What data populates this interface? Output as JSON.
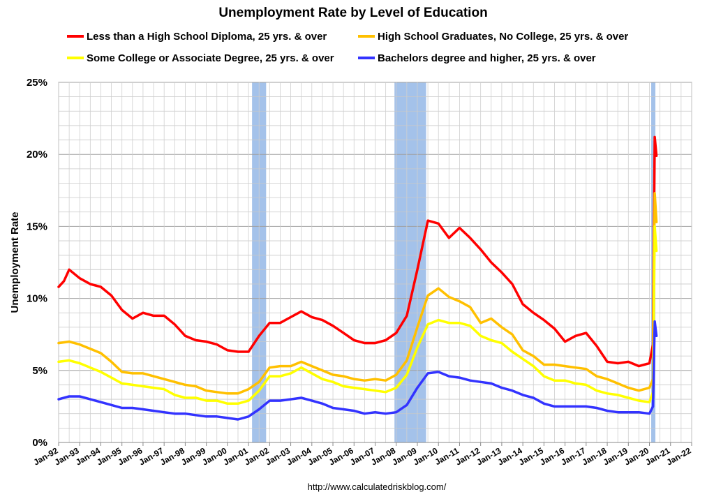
{
  "chart_data": {
    "type": "line",
    "title": "Unemployment Rate by Level of Education",
    "ylabel": "Unemployment Rate",
    "xlabel": "",
    "source": "http://www.calculatedriskblog.com/",
    "ylim": [
      0,
      25
    ],
    "xlim": [
      "1992-01",
      "2022-01"
    ],
    "grid": true,
    "legend_position": "top",
    "y_ticks": [
      {
        "value": 0,
        "label": "0%"
      },
      {
        "value": 5,
        "label": "5%"
      },
      {
        "value": 10,
        "label": "10%"
      },
      {
        "value": 15,
        "label": "15%"
      },
      {
        "value": 20,
        "label": "20%"
      },
      {
        "value": 25,
        "label": "25%"
      }
    ],
    "x_ticks": [
      {
        "date": "1992-01",
        "label": "Jan-92"
      },
      {
        "date": "1993-01",
        "label": "Jan-93"
      },
      {
        "date": "1994-01",
        "label": "Jan-94"
      },
      {
        "date": "1995-01",
        "label": "Jan-95"
      },
      {
        "date": "1996-01",
        "label": "Jan-96"
      },
      {
        "date": "1997-01",
        "label": "Jan-97"
      },
      {
        "date": "1998-01",
        "label": "Jan-98"
      },
      {
        "date": "1999-01",
        "label": "Jan-99"
      },
      {
        "date": "2000-01",
        "label": "Jan-00"
      },
      {
        "date": "2001-01",
        "label": "Jan-01"
      },
      {
        "date": "2002-01",
        "label": "Jan-02"
      },
      {
        "date": "2003-01",
        "label": "Jan-03"
      },
      {
        "date": "2004-01",
        "label": "Jan-04"
      },
      {
        "date": "2005-01",
        "label": "Jan-05"
      },
      {
        "date": "2006-01",
        "label": "Jan-06"
      },
      {
        "date": "2007-01",
        "label": "Jan-07"
      },
      {
        "date": "2008-01",
        "label": "Jan-08"
      },
      {
        "date": "2009-01",
        "label": "Jan-09"
      },
      {
        "date": "2010-01",
        "label": "Jan-10"
      },
      {
        "date": "2011-01",
        "label": "Jan-11"
      },
      {
        "date": "2012-01",
        "label": "Jan-12"
      },
      {
        "date": "2013-01",
        "label": "Jan-13"
      },
      {
        "date": "2014-01",
        "label": "Jan-14"
      },
      {
        "date": "2015-01",
        "label": "Jan-15"
      },
      {
        "date": "2016-01",
        "label": "Jan-16"
      },
      {
        "date": "2017-01",
        "label": "Jan-17"
      },
      {
        "date": "2018-01",
        "label": "Jan-18"
      },
      {
        "date": "2019-01",
        "label": "Jan-19"
      },
      {
        "date": "2020-01",
        "label": "Jan-20"
      },
      {
        "date": "2021-01",
        "label": "Jan-21"
      },
      {
        "date": "2022-01",
        "label": "Jan-22"
      }
    ],
    "recessions": [
      {
        "start": "2001-03",
        "end": "2001-11"
      },
      {
        "start": "2007-12",
        "end": "2009-06"
      },
      {
        "start": "2020-02",
        "end": "2020-04"
      }
    ],
    "recession_color": "#a4c2ea",
    "series": [
      {
        "name": "Less than a High School Diploma, 25 yrs. & over",
        "color": "#ff0000",
        "points": [
          [
            "1992-01",
            10.8
          ],
          [
            "1992-04",
            11.2
          ],
          [
            "1992-07",
            12.0
          ],
          [
            "1993-01",
            11.4
          ],
          [
            "1993-07",
            11.0
          ],
          [
            "1994-01",
            10.8
          ],
          [
            "1994-07",
            10.2
          ],
          [
            "1995-01",
            9.2
          ],
          [
            "1995-07",
            8.6
          ],
          [
            "1996-01",
            9.0
          ],
          [
            "1996-07",
            8.8
          ],
          [
            "1997-01",
            8.8
          ],
          [
            "1997-07",
            8.2
          ],
          [
            "1998-01",
            7.4
          ],
          [
            "1998-07",
            7.1
          ],
          [
            "1999-01",
            7.0
          ],
          [
            "1999-07",
            6.8
          ],
          [
            "2000-01",
            6.4
          ],
          [
            "2000-07",
            6.3
          ],
          [
            "2001-01",
            6.3
          ],
          [
            "2001-07",
            7.4
          ],
          [
            "2002-01",
            8.3
          ],
          [
            "2002-07",
            8.3
          ],
          [
            "2003-01",
            8.7
          ],
          [
            "2003-07",
            9.1
          ],
          [
            "2004-01",
            8.7
          ],
          [
            "2004-07",
            8.5
          ],
          [
            "2005-01",
            8.1
          ],
          [
            "2005-07",
            7.6
          ],
          [
            "2006-01",
            7.1
          ],
          [
            "2006-07",
            6.9
          ],
          [
            "2007-01",
            6.9
          ],
          [
            "2007-07",
            7.1
          ],
          [
            "2008-01",
            7.6
          ],
          [
            "2008-07",
            8.8
          ],
          [
            "2009-01",
            12.0
          ],
          [
            "2009-07",
            15.4
          ],
          [
            "2010-01",
            15.2
          ],
          [
            "2010-07",
            14.2
          ],
          [
            "2011-01",
            14.9
          ],
          [
            "2011-07",
            14.2
          ],
          [
            "2012-01",
            13.4
          ],
          [
            "2012-07",
            12.5
          ],
          [
            "2013-01",
            11.8
          ],
          [
            "2013-07",
            11.0
          ],
          [
            "2014-01",
            9.6
          ],
          [
            "2014-07",
            9.0
          ],
          [
            "2015-01",
            8.5
          ],
          [
            "2015-07",
            7.9
          ],
          [
            "2016-01",
            7.0
          ],
          [
            "2016-07",
            7.4
          ],
          [
            "2017-01",
            7.6
          ],
          [
            "2017-07",
            6.7
          ],
          [
            "2018-01",
            5.6
          ],
          [
            "2018-07",
            5.5
          ],
          [
            "2019-01",
            5.6
          ],
          [
            "2019-07",
            5.3
          ],
          [
            "2020-01",
            5.5
          ],
          [
            "2020-03",
            6.8
          ],
          [
            "2020-04",
            21.2
          ],
          [
            "2020-05",
            19.9
          ]
        ]
      },
      {
        "name": "High School Graduates, No College, 25 yrs. & over",
        "color": "#ffc000",
        "points": [
          [
            "1992-01",
            6.9
          ],
          [
            "1992-07",
            7.0
          ],
          [
            "1993-01",
            6.8
          ],
          [
            "1993-07",
            6.5
          ],
          [
            "1994-01",
            6.2
          ],
          [
            "1994-07",
            5.6
          ],
          [
            "1995-01",
            4.9
          ],
          [
            "1995-07",
            4.8
          ],
          [
            "1996-01",
            4.8
          ],
          [
            "1996-07",
            4.6
          ],
          [
            "1997-01",
            4.4
          ],
          [
            "1997-07",
            4.2
          ],
          [
            "1998-01",
            4.0
          ],
          [
            "1998-07",
            3.9
          ],
          [
            "1999-01",
            3.6
          ],
          [
            "1999-07",
            3.5
          ],
          [
            "2000-01",
            3.4
          ],
          [
            "2000-07",
            3.4
          ],
          [
            "2001-01",
            3.7
          ],
          [
            "2001-07",
            4.2
          ],
          [
            "2002-01",
            5.2
          ],
          [
            "2002-07",
            5.3
          ],
          [
            "2003-01",
            5.3
          ],
          [
            "2003-07",
            5.6
          ],
          [
            "2004-01",
            5.3
          ],
          [
            "2004-07",
            5.0
          ],
          [
            "2005-01",
            4.7
          ],
          [
            "2005-07",
            4.6
          ],
          [
            "2006-01",
            4.4
          ],
          [
            "2006-07",
            4.3
          ],
          [
            "2007-01",
            4.4
          ],
          [
            "2007-07",
            4.3
          ],
          [
            "2008-01",
            4.7
          ],
          [
            "2008-07",
            5.7
          ],
          [
            "2009-01",
            8.0
          ],
          [
            "2009-07",
            10.2
          ],
          [
            "2010-01",
            10.7
          ],
          [
            "2010-07",
            10.1
          ],
          [
            "2011-01",
            9.8
          ],
          [
            "2011-07",
            9.4
          ],
          [
            "2012-01",
            8.3
          ],
          [
            "2012-07",
            8.6
          ],
          [
            "2013-01",
            8.0
          ],
          [
            "2013-07",
            7.5
          ],
          [
            "2014-01",
            6.4
          ],
          [
            "2014-07",
            6.0
          ],
          [
            "2015-01",
            5.4
          ],
          [
            "2015-07",
            5.4
          ],
          [
            "2016-01",
            5.3
          ],
          [
            "2016-07",
            5.2
          ],
          [
            "2017-01",
            5.1
          ],
          [
            "2017-07",
            4.6
          ],
          [
            "2018-01",
            4.4
          ],
          [
            "2018-07",
            4.1
          ],
          [
            "2019-01",
            3.8
          ],
          [
            "2019-07",
            3.6
          ],
          [
            "2020-01",
            3.8
          ],
          [
            "2020-03",
            4.4
          ],
          [
            "2020-04",
            17.3
          ],
          [
            "2020-05",
            15.3
          ]
        ]
      },
      {
        "name": "Some College or Associate Degree, 25 yrs. & over",
        "color": "#ffff00",
        "points": [
          [
            "1992-01",
            5.6
          ],
          [
            "1992-07",
            5.7
          ],
          [
            "1993-01",
            5.5
          ],
          [
            "1993-07",
            5.2
          ],
          [
            "1994-01",
            4.9
          ],
          [
            "1994-07",
            4.5
          ],
          [
            "1995-01",
            4.1
          ],
          [
            "1995-07",
            4.0
          ],
          [
            "1996-01",
            3.9
          ],
          [
            "1996-07",
            3.8
          ],
          [
            "1997-01",
            3.7
          ],
          [
            "1997-07",
            3.3
          ],
          [
            "1998-01",
            3.1
          ],
          [
            "1998-07",
            3.1
          ],
          [
            "1999-01",
            2.9
          ],
          [
            "1999-07",
            2.9
          ],
          [
            "2000-01",
            2.7
          ],
          [
            "2000-07",
            2.7
          ],
          [
            "2001-01",
            2.9
          ],
          [
            "2001-07",
            3.6
          ],
          [
            "2002-01",
            4.6
          ],
          [
            "2002-07",
            4.6
          ],
          [
            "2003-01",
            4.8
          ],
          [
            "2003-07",
            5.2
          ],
          [
            "2004-01",
            4.8
          ],
          [
            "2004-07",
            4.4
          ],
          [
            "2005-01",
            4.2
          ],
          [
            "2005-07",
            3.9
          ],
          [
            "2006-01",
            3.8
          ],
          [
            "2006-07",
            3.7
          ],
          [
            "2007-01",
            3.6
          ],
          [
            "2007-07",
            3.5
          ],
          [
            "2008-01",
            3.8
          ],
          [
            "2008-07",
            4.7
          ],
          [
            "2009-01",
            6.6
          ],
          [
            "2009-07",
            8.2
          ],
          [
            "2010-01",
            8.5
          ],
          [
            "2010-07",
            8.3
          ],
          [
            "2011-01",
            8.3
          ],
          [
            "2011-07",
            8.1
          ],
          [
            "2012-01",
            7.4
          ],
          [
            "2012-07",
            7.1
          ],
          [
            "2013-01",
            6.9
          ],
          [
            "2013-07",
            6.3
          ],
          [
            "2014-01",
            5.8
          ],
          [
            "2014-07",
            5.3
          ],
          [
            "2015-01",
            4.6
          ],
          [
            "2015-07",
            4.3
          ],
          [
            "2016-01",
            4.3
          ],
          [
            "2016-07",
            4.1
          ],
          [
            "2017-01",
            4.0
          ],
          [
            "2017-07",
            3.6
          ],
          [
            "2018-01",
            3.4
          ],
          [
            "2018-07",
            3.3
          ],
          [
            "2019-01",
            3.1
          ],
          [
            "2019-07",
            2.9
          ],
          [
            "2020-01",
            2.8
          ],
          [
            "2020-03",
            3.5
          ],
          [
            "2020-04",
            15.0
          ],
          [
            "2020-05",
            13.3
          ]
        ]
      },
      {
        "name": "Bachelors degree and higher, 25 yrs. & over",
        "color": "#3333ff",
        "points": [
          [
            "1992-01",
            3.0
          ],
          [
            "1992-07",
            3.2
          ],
          [
            "1993-01",
            3.2
          ],
          [
            "1993-07",
            3.0
          ],
          [
            "1994-01",
            2.8
          ],
          [
            "1994-07",
            2.6
          ],
          [
            "1995-01",
            2.4
          ],
          [
            "1995-07",
            2.4
          ],
          [
            "1996-01",
            2.3
          ],
          [
            "1996-07",
            2.2
          ],
          [
            "1997-01",
            2.1
          ],
          [
            "1997-07",
            2.0
          ],
          [
            "1998-01",
            2.0
          ],
          [
            "1998-07",
            1.9
          ],
          [
            "1999-01",
            1.8
          ],
          [
            "1999-07",
            1.8
          ],
          [
            "2000-01",
            1.7
          ],
          [
            "2000-07",
            1.6
          ],
          [
            "2001-01",
            1.8
          ],
          [
            "2001-07",
            2.3
          ],
          [
            "2002-01",
            2.9
          ],
          [
            "2002-07",
            2.9
          ],
          [
            "2003-01",
            3.0
          ],
          [
            "2003-07",
            3.1
          ],
          [
            "2004-01",
            2.9
          ],
          [
            "2004-07",
            2.7
          ],
          [
            "2005-01",
            2.4
          ],
          [
            "2005-07",
            2.3
          ],
          [
            "2006-01",
            2.2
          ],
          [
            "2006-07",
            2.0
          ],
          [
            "2007-01",
            2.1
          ],
          [
            "2007-07",
            2.0
          ],
          [
            "2008-01",
            2.1
          ],
          [
            "2008-07",
            2.6
          ],
          [
            "2009-01",
            3.8
          ],
          [
            "2009-07",
            4.8
          ],
          [
            "2010-01",
            4.9
          ],
          [
            "2010-07",
            4.6
          ],
          [
            "2011-01",
            4.5
          ],
          [
            "2011-07",
            4.3
          ],
          [
            "2012-01",
            4.2
          ],
          [
            "2012-07",
            4.1
          ],
          [
            "2013-01",
            3.8
          ],
          [
            "2013-07",
            3.6
          ],
          [
            "2014-01",
            3.3
          ],
          [
            "2014-07",
            3.1
          ],
          [
            "2015-01",
            2.7
          ],
          [
            "2015-07",
            2.5
          ],
          [
            "2016-01",
            2.5
          ],
          [
            "2016-07",
            2.5
          ],
          [
            "2017-01",
            2.5
          ],
          [
            "2017-07",
            2.4
          ],
          [
            "2018-01",
            2.2
          ],
          [
            "2018-07",
            2.1
          ],
          [
            "2019-01",
            2.1
          ],
          [
            "2019-07",
            2.1
          ],
          [
            "2020-01",
            2.0
          ],
          [
            "2020-03",
            2.5
          ],
          [
            "2020-04",
            8.4
          ],
          [
            "2020-05",
            7.4
          ]
        ]
      }
    ]
  }
}
